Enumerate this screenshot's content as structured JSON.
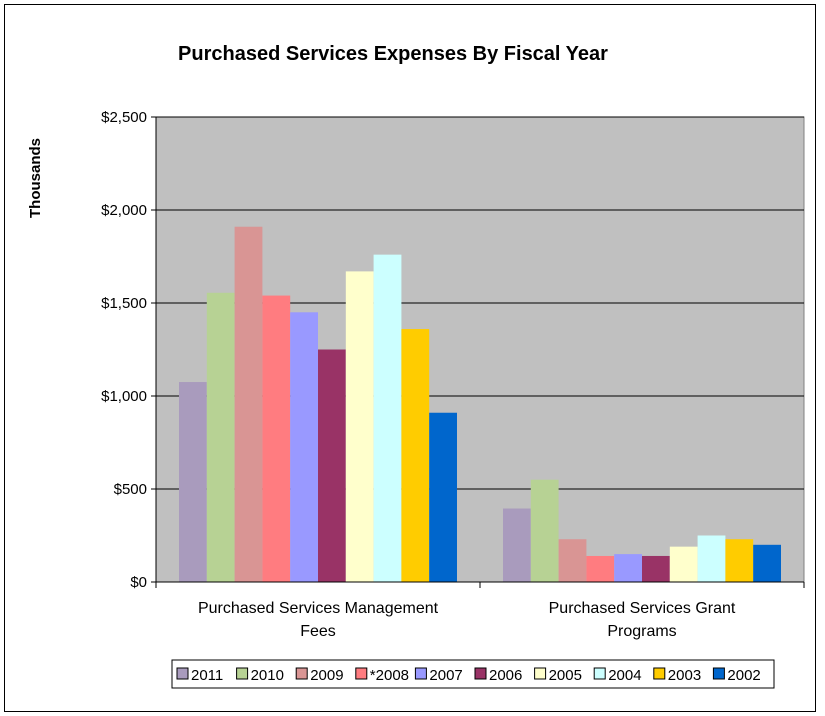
{
  "chart_data": {
    "type": "bar",
    "title": "Purchased Services Expenses By Fiscal Year",
    "ylabel": "Thousands",
    "xlabel": "",
    "ylim": [
      0,
      2500
    ],
    "yticks": [
      "$0",
      "$500",
      "$1,000",
      "$1,500",
      "$2,000",
      "$2,500"
    ],
    "ytick_values": [
      0,
      500,
      1000,
      1500,
      2000,
      2500
    ],
    "grid": true,
    "plot_background": "#c0c0c0",
    "legend_placement": "bottom",
    "categories": [
      [
        "Purchased Services Management",
        "Fees"
      ],
      [
        "Purchased Services Grant",
        "Programs"
      ]
    ],
    "series": [
      {
        "name": "2011",
        "color": "#a99bbd",
        "values": [
          1075,
          395
        ]
      },
      {
        "name": "2010",
        "color": "#b7d294",
        "values": [
          1555,
          550
        ]
      },
      {
        "name": "2009",
        "color": "#d99594",
        "values": [
          1910,
          230
        ]
      },
      {
        "name": "*2008",
        "color": "#ff7c80",
        "values": [
          1540,
          140
        ]
      },
      {
        "name": "2007",
        "color": "#9999ff",
        "values": [
          1450,
          150
        ]
      },
      {
        "name": "2006",
        "color": "#993366",
        "values": [
          1250,
          140
        ]
      },
      {
        "name": "2005",
        "color": "#ffffcc",
        "values": [
          1670,
          190
        ]
      },
      {
        "name": "2004",
        "color": "#ccffff",
        "values": [
          1760,
          250
        ]
      },
      {
        "name": "2003",
        "color": "#ffcc00",
        "values": [
          1360,
          230
        ]
      },
      {
        "name": "2002",
        "color": "#0066cc",
        "values": [
          910,
          200
        ]
      }
    ]
  }
}
